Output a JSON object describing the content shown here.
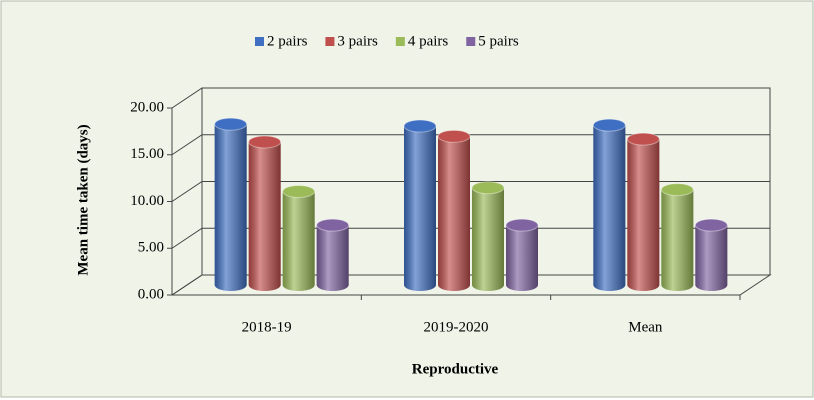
{
  "chart_data": {
    "type": "bar3d",
    "x_label": "Reproductive",
    "y_label": "Mean  time taken (days)",
    "categories": [
      "2018-19",
      "2019-2020",
      "Mean"
    ],
    "series": [
      {
        "name": "2 pairs",
        "color": "#3f6fc2",
        "values": [
          17.2,
          17.0,
          17.1
        ]
      },
      {
        "name": "3 pairs",
        "color": "#c0504d",
        "values": [
          15.3,
          15.9,
          15.6
        ]
      },
      {
        "name": "4 pairs",
        "color": "#9bbb59",
        "values": [
          10.0,
          10.4,
          10.2
        ]
      },
      {
        "name": "5 pairs",
        "color": "#8064a2",
        "values": [
          6.4,
          6.4,
          6.4
        ]
      }
    ],
    "ylim": [
      0,
      20
    ],
    "yticks": [
      {
        "value": 0,
        "label": "0.00"
      },
      {
        "value": 5,
        "label": "5.00"
      },
      {
        "value": 10,
        "label": "10.00"
      },
      {
        "value": 15,
        "label": "15.00"
      },
      {
        "value": 20,
        "label": "20.00"
      }
    ],
    "grid": true,
    "legend": "top"
  }
}
